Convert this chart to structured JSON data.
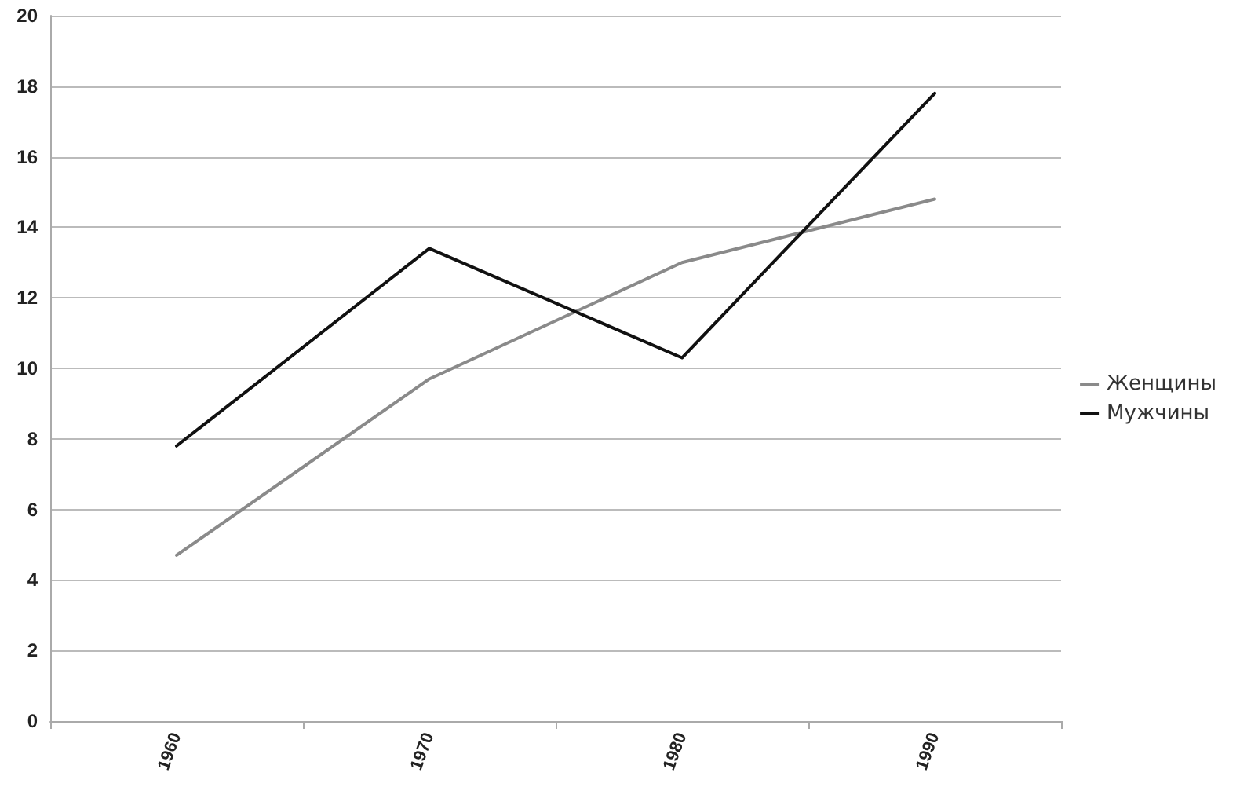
{
  "chart_data": {
    "type": "line",
    "categories": [
      "1960",
      "1970",
      "1980",
      "1990"
    ],
    "series": [
      {
        "name": "Женщины",
        "color": "#8a8a8a",
        "values": [
          4.7,
          9.7,
          13,
          14.8
        ]
      },
      {
        "name": "Мужчины",
        "color": "#111111",
        "values": [
          7.8,
          13.4,
          10.3,
          17.8
        ]
      }
    ],
    "ylim": [
      0,
      20
    ],
    "yticks": [
      0,
      2,
      4,
      6,
      8,
      10,
      12,
      14,
      16,
      18,
      20
    ],
    "grid": "y",
    "legend": "right",
    "marker": "none"
  }
}
